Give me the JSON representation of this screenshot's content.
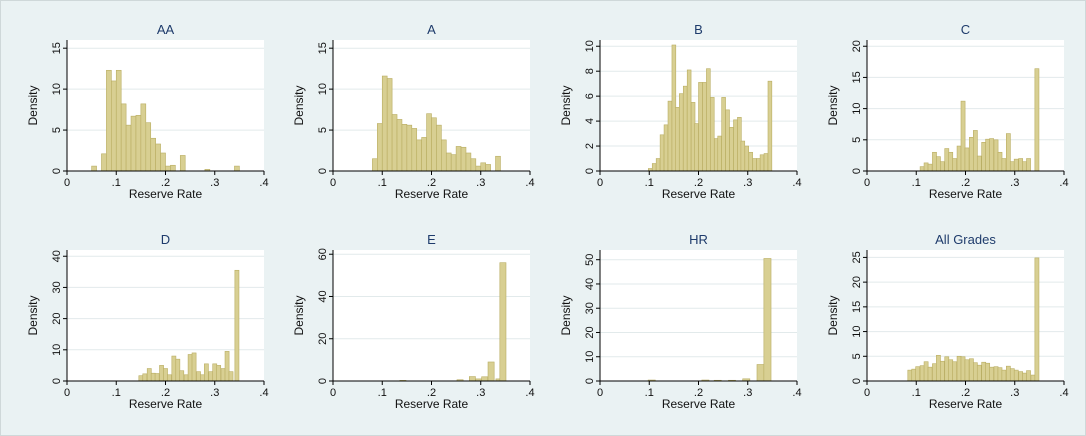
{
  "chart_data": [
    {
      "type": "bar",
      "title": "AA",
      "xlabel": "Reserve Rate",
      "ylabel": "Density",
      "xlim": [
        0,
        0.4
      ],
      "xticks": [
        "0",
        ".1",
        ".2",
        ".3",
        ".4"
      ],
      "ylim": [
        0,
        16
      ],
      "yticks": [
        0,
        5,
        10,
        15
      ],
      "bin_width": 0.01,
      "bins": [
        [
          0.055,
          0.6
        ],
        [
          0.075,
          2.1
        ],
        [
          0.085,
          12.3
        ],
        [
          0.095,
          11.0
        ],
        [
          0.105,
          12.3
        ],
        [
          0.115,
          8.2
        ],
        [
          0.125,
          5.6
        ],
        [
          0.135,
          6.7
        ],
        [
          0.145,
          6.8
        ],
        [
          0.155,
          8.2
        ],
        [
          0.165,
          5.9
        ],
        [
          0.175,
          4.0
        ],
        [
          0.185,
          3.3
        ],
        [
          0.195,
          2.2
        ],
        [
          0.205,
          0.6
        ],
        [
          0.215,
          0.7
        ],
        [
          0.235,
          1.9
        ],
        [
          0.285,
          0.2
        ],
        [
          0.345,
          0.6
        ]
      ]
    },
    {
      "type": "bar",
      "title": "A",
      "xlabel": "Reserve Rate",
      "ylabel": "Density",
      "xlim": [
        0,
        0.4
      ],
      "xticks": [
        "0",
        ".1",
        ".2",
        ".3",
        ".4"
      ],
      "ylim": [
        0,
        16
      ],
      "yticks": [
        0,
        5,
        10,
        15
      ],
      "bin_width": 0.01,
      "bins": [
        [
          0.085,
          1.5
        ],
        [
          0.095,
          5.8
        ],
        [
          0.105,
          11.6
        ],
        [
          0.115,
          11.3
        ],
        [
          0.125,
          6.9
        ],
        [
          0.135,
          6.3
        ],
        [
          0.145,
          5.7
        ],
        [
          0.155,
          5.6
        ],
        [
          0.165,
          5.2
        ],
        [
          0.175,
          3.8
        ],
        [
          0.185,
          4.1
        ],
        [
          0.195,
          7.0
        ],
        [
          0.205,
          6.5
        ],
        [
          0.215,
          5.6
        ],
        [
          0.225,
          3.8
        ],
        [
          0.235,
          2.2
        ],
        [
          0.245,
          2.0
        ],
        [
          0.255,
          3.0
        ],
        [
          0.265,
          2.9
        ],
        [
          0.275,
          2.2
        ],
        [
          0.285,
          1.5
        ],
        [
          0.295,
          0.6
        ],
        [
          0.305,
          1.0
        ],
        [
          0.315,
          0.8
        ],
        [
          0.335,
          1.8
        ]
      ]
    },
    {
      "type": "bar",
      "title": "B",
      "xlabel": "Reserve Rate",
      "ylabel": "Density",
      "xlim": [
        0,
        0.4
      ],
      "xticks": [
        "0",
        ".1",
        ".2",
        ".3",
        ".4"
      ],
      "ylim": [
        0,
        10.5
      ],
      "yticks": [
        0,
        2,
        4,
        6,
        8,
        10
      ],
      "bin_width": 0.0078,
      "bins": [
        [
          0.102,
          0.2
        ],
        [
          0.11,
          0.6
        ],
        [
          0.118,
          1.0
        ],
        [
          0.126,
          2.9
        ],
        [
          0.134,
          3.7
        ],
        [
          0.142,
          5.6
        ],
        [
          0.15,
          10.1
        ],
        [
          0.157,
          5.1
        ],
        [
          0.165,
          6.2
        ],
        [
          0.173,
          6.8
        ],
        [
          0.181,
          8.1
        ],
        [
          0.189,
          5.5
        ],
        [
          0.196,
          3.8
        ],
        [
          0.204,
          7.1
        ],
        [
          0.212,
          7.1
        ],
        [
          0.22,
          8.2
        ],
        [
          0.228,
          5.9
        ],
        [
          0.236,
          2.6
        ],
        [
          0.243,
          2.8
        ],
        [
          0.251,
          5.9
        ],
        [
          0.259,
          4.9
        ],
        [
          0.267,
          3.5
        ],
        [
          0.275,
          4.1
        ],
        [
          0.283,
          4.3
        ],
        [
          0.29,
          2.4
        ],
        [
          0.298,
          2.0
        ],
        [
          0.306,
          1.5
        ],
        [
          0.314,
          1.0
        ],
        [
          0.322,
          1.0
        ],
        [
          0.329,
          1.3
        ],
        [
          0.337,
          1.4
        ],
        [
          0.345,
          7.2
        ]
      ]
    },
    {
      "type": "bar",
      "title": "C",
      "xlabel": "Reserve Rate",
      "ylabel": "Density",
      "xlim": [
        0,
        0.4
      ],
      "xticks": [
        "0",
        ".1",
        ".2",
        ".3",
        ".4"
      ],
      "ylim": [
        0,
        21
      ],
      "yticks": [
        0,
        5,
        10,
        15,
        20
      ],
      "bin_width": 0.0083,
      "bins": [
        [
          0.112,
          0.7
        ],
        [
          0.12,
          1.3
        ],
        [
          0.128,
          1.1
        ],
        [
          0.137,
          3.0
        ],
        [
          0.145,
          2.3
        ],
        [
          0.153,
          1.5
        ],
        [
          0.162,
          3.6
        ],
        [
          0.17,
          3.0
        ],
        [
          0.178,
          2.0
        ],
        [
          0.187,
          4.0
        ],
        [
          0.195,
          11.2
        ],
        [
          0.203,
          3.7
        ],
        [
          0.212,
          5.4
        ],
        [
          0.22,
          6.5
        ],
        [
          0.228,
          2.4
        ],
        [
          0.237,
          4.6
        ],
        [
          0.245,
          5.1
        ],
        [
          0.253,
          5.2
        ],
        [
          0.262,
          5.0
        ],
        [
          0.27,
          3.0
        ],
        [
          0.278,
          2.0
        ],
        [
          0.287,
          6.0
        ],
        [
          0.295,
          1.5
        ],
        [
          0.303,
          1.9
        ],
        [
          0.312,
          2.0
        ],
        [
          0.32,
          1.5
        ],
        [
          0.328,
          2.0
        ],
        [
          0.345,
          16.4
        ]
      ]
    },
    {
      "type": "bar",
      "title": "D",
      "xlabel": "Reserve Rate",
      "ylabel": "Density",
      "xlim": [
        0,
        0.4
      ],
      "xticks": [
        "0",
        ".1",
        ".2",
        ".3",
        ".4"
      ],
      "ylim": [
        0,
        42
      ],
      "yticks": [
        0,
        10,
        20,
        30,
        40
      ],
      "bin_width": 0.0083,
      "bins": [
        [
          0.15,
          1.7
        ],
        [
          0.158,
          2.3
        ],
        [
          0.167,
          4.0
        ],
        [
          0.175,
          2.5
        ],
        [
          0.183,
          2.4
        ],
        [
          0.192,
          5.0
        ],
        [
          0.2,
          4.0
        ],
        [
          0.208,
          2.0
        ],
        [
          0.217,
          8.0
        ],
        [
          0.225,
          7.0
        ],
        [
          0.233,
          3.3
        ],
        [
          0.242,
          2.0
        ],
        [
          0.25,
          8.5
        ],
        [
          0.258,
          9.0
        ],
        [
          0.267,
          3.0
        ],
        [
          0.275,
          2.0
        ],
        [
          0.283,
          5.5
        ],
        [
          0.292,
          3.0
        ],
        [
          0.3,
          5.5
        ],
        [
          0.308,
          5.0
        ],
        [
          0.317,
          4.0
        ],
        [
          0.325,
          9.5
        ],
        [
          0.333,
          3.0
        ],
        [
          0.345,
          35.5
        ]
      ]
    },
    {
      "type": "bar",
      "title": "E",
      "xlabel": "Reserve Rate",
      "ylabel": "Density",
      "xlim": [
        0,
        0.4
      ],
      "xticks": [
        "0",
        ".1",
        ".2",
        ".3",
        ".4"
      ],
      "ylim": [
        0,
        62
      ],
      "yticks": [
        0,
        20,
        40,
        60
      ],
      "bin_width": 0.0125,
      "bins": [
        [
          0.142,
          0.3
        ],
        [
          0.258,
          0.6
        ],
        [
          0.283,
          2.1
        ],
        [
          0.296,
          1.0
        ],
        [
          0.308,
          2.0
        ],
        [
          0.321,
          9.0
        ],
        [
          0.337,
          1.0
        ],
        [
          0.345,
          56.0
        ]
      ]
    },
    {
      "type": "bar",
      "title": "HR",
      "xlabel": "Reserve Rate",
      "ylabel": "Density",
      "xlim": [
        0,
        0.4
      ],
      "xticks": [
        "0",
        ".1",
        ".2",
        ".3",
        ".4"
      ],
      "ylim": [
        0,
        54
      ],
      "yticks": [
        0,
        10,
        20,
        30,
        40,
        50
      ],
      "bin_width": 0.0145,
      "bins": [
        [
          0.105,
          0.4
        ],
        [
          0.214,
          0.4
        ],
        [
          0.239,
          0.3
        ],
        [
          0.268,
          0.3
        ],
        [
          0.297,
          0.9
        ],
        [
          0.326,
          6.8
        ],
        [
          0.34,
          50.5
        ]
      ]
    },
    {
      "type": "bar",
      "title": "All Grades",
      "xlabel": "Reserve Rate",
      "ylabel": "Density",
      "xlim": [
        0,
        0.4
      ],
      "xticks": [
        "0",
        ".1",
        ".2",
        ".3",
        ".4"
      ],
      "ylim": [
        0,
        26.5
      ],
      "yticks": [
        0,
        5,
        10,
        15,
        20,
        25
      ],
      "bin_width": 0.0083,
      "bins": [
        [
          0.087,
          2.2
        ],
        [
          0.095,
          2.4
        ],
        [
          0.103,
          2.9
        ],
        [
          0.112,
          3.1
        ],
        [
          0.12,
          3.9
        ],
        [
          0.128,
          2.8
        ],
        [
          0.137,
          3.5
        ],
        [
          0.145,
          5.2
        ],
        [
          0.153,
          4.0
        ],
        [
          0.162,
          4.9
        ],
        [
          0.17,
          4.3
        ],
        [
          0.178,
          3.9
        ],
        [
          0.187,
          5.0
        ],
        [
          0.195,
          4.9
        ],
        [
          0.203,
          4.3
        ],
        [
          0.212,
          4.5
        ],
        [
          0.22,
          3.7
        ],
        [
          0.228,
          3.2
        ],
        [
          0.237,
          3.8
        ],
        [
          0.245,
          3.6
        ],
        [
          0.253,
          2.8
        ],
        [
          0.262,
          2.9
        ],
        [
          0.27,
          2.7
        ],
        [
          0.278,
          2.2
        ],
        [
          0.287,
          3.0
        ],
        [
          0.295,
          2.5
        ],
        [
          0.303,
          2.2
        ],
        [
          0.312,
          1.9
        ],
        [
          0.32,
          1.6
        ],
        [
          0.328,
          2.1
        ],
        [
          0.337,
          1.2
        ],
        [
          0.345,
          24.9
        ]
      ]
    }
  ],
  "colors": {
    "background": "#eaf2f3",
    "plot_area": "#ffffff",
    "bar_fill": "#d8cf92",
    "bar_stroke": "#b9ad62",
    "title_color": "#1e3b6b",
    "grid_color": "#e2eaeb"
  }
}
